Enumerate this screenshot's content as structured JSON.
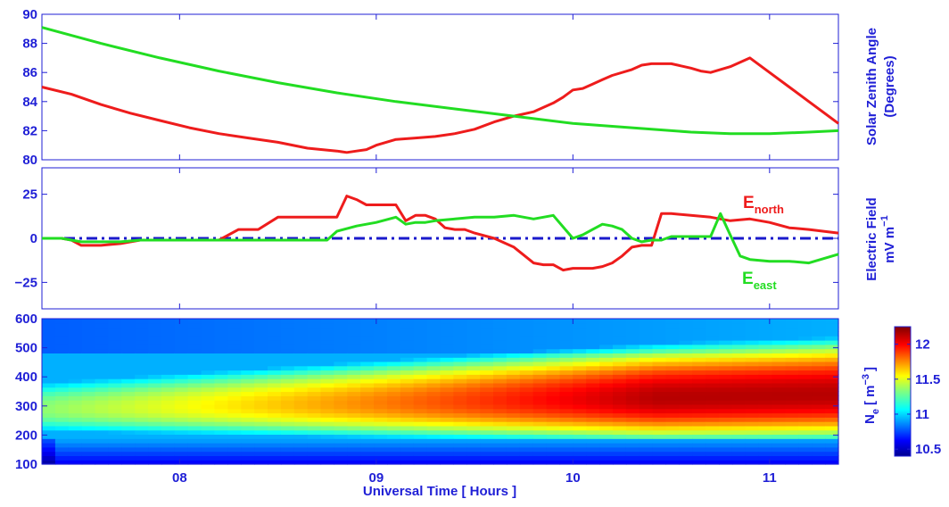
{
  "chart_data": [
    {
      "type": "line",
      "ylabel_line1": "Solar Zenith Angle",
      "ylabel_line2": "(Degrees)",
      "xlim": [
        7.3,
        11.35
      ],
      "ylim": [
        80,
        90
      ],
      "yticks": [
        80,
        82,
        84,
        86,
        88,
        90
      ],
      "series": [
        {
          "color": "#ee1c1c",
          "x": [
            7.3,
            7.45,
            7.6,
            7.75,
            7.9,
            8.05,
            8.2,
            8.35,
            8.5,
            8.65,
            8.8,
            8.85,
            8.9,
            8.95,
            9.0,
            9.1,
            9.2,
            9.3,
            9.4,
            9.5,
            9.6,
            9.7,
            9.8,
            9.9,
            9.95,
            10.0,
            10.05,
            10.1,
            10.15,
            10.2,
            10.3,
            10.35,
            10.4,
            10.5,
            10.6,
            10.65,
            10.7,
            10.8,
            10.9,
            11.0,
            11.1,
            11.2,
            11.35
          ],
          "y": [
            85.0,
            84.5,
            83.8,
            83.2,
            82.7,
            82.2,
            81.8,
            81.5,
            81.2,
            80.8,
            80.6,
            80.5,
            80.6,
            80.7,
            81.0,
            81.4,
            81.5,
            81.6,
            81.8,
            82.1,
            82.6,
            83.0,
            83.3,
            83.9,
            84.3,
            84.8,
            84.9,
            85.2,
            85.5,
            85.8,
            86.2,
            86.5,
            86.6,
            86.6,
            86.3,
            86.1,
            86.0,
            86.4,
            87.0,
            86.0,
            85.0,
            84.0,
            82.5
          ]
        },
        {
          "color": "#22dd22",
          "x": [
            7.3,
            7.6,
            7.9,
            8.2,
            8.5,
            8.8,
            9.1,
            9.4,
            9.7,
            10.0,
            10.3,
            10.6,
            10.8,
            11.0,
            11.2,
            11.35
          ],
          "y": [
            89.1,
            88.0,
            87.0,
            86.1,
            85.3,
            84.6,
            84.0,
            83.5,
            83.0,
            82.5,
            82.2,
            81.9,
            81.8,
            81.8,
            81.9,
            82.0
          ]
        }
      ]
    },
    {
      "type": "line",
      "ylabel_line1": "Electric Field",
      "ylabel_line2": "mV m",
      "ylabel_line2_sup": "−1",
      "xlim": [
        7.3,
        11.35
      ],
      "ylim": [
        -40,
        40
      ],
      "yticks": [
        -25,
        0,
        25
      ],
      "ytick_labels": [
        "−25",
        "0",
        "25"
      ],
      "zero_line_color": "#1a1acc",
      "series": [
        {
          "name": "E",
          "name_sub": "north",
          "color": "#ee1c1c",
          "x": [
            7.3,
            7.35,
            7.4,
            7.45,
            7.5,
            7.6,
            7.7,
            7.8,
            7.9,
            8.0,
            8.1,
            8.2,
            8.3,
            8.35,
            8.4,
            8.5,
            8.6,
            8.7,
            8.8,
            8.85,
            8.9,
            8.95,
            9.0,
            9.05,
            9.1,
            9.15,
            9.2,
            9.25,
            9.3,
            9.35,
            9.4,
            9.45,
            9.5,
            9.6,
            9.7,
            9.8,
            9.85,
            9.9,
            9.95,
            10.0,
            10.05,
            10.1,
            10.15,
            10.2,
            10.25,
            10.3,
            10.35,
            10.4,
            10.45,
            10.5,
            10.6,
            10.7,
            10.8,
            10.9,
            11.0,
            11.1,
            11.2,
            11.35
          ],
          "y": [
            0,
            0,
            0,
            -1,
            -4,
            -4,
            -3,
            -1,
            -1,
            -1,
            -1,
            -1,
            5,
            5,
            5,
            12,
            12,
            12,
            12,
            24,
            22,
            19,
            19,
            19,
            19,
            10,
            13,
            13,
            11,
            6,
            5,
            5,
            3,
            0,
            -5,
            -14,
            -15,
            -15,
            -18,
            -17,
            -17,
            -17,
            -16,
            -14,
            -10,
            -5,
            -4,
            -4,
            14,
            14,
            13,
            12,
            10,
            11,
            9,
            6,
            5,
            3
          ]
        },
        {
          "name": "E",
          "name_sub": "east",
          "color": "#22dd22",
          "x": [
            7.3,
            7.4,
            7.45,
            7.5,
            7.6,
            7.7,
            7.8,
            7.9,
            8.0,
            8.1,
            8.2,
            8.3,
            8.4,
            8.5,
            8.6,
            8.7,
            8.75,
            8.8,
            8.9,
            9.0,
            9.1,
            9.15,
            9.2,
            9.25,
            9.3,
            9.4,
            9.5,
            9.6,
            9.7,
            9.8,
            9.85,
            9.9,
            10.0,
            10.05,
            10.1,
            10.15,
            10.2,
            10.25,
            10.3,
            10.35,
            10.4,
            10.45,
            10.5,
            10.6,
            10.7,
            10.75,
            10.8,
            10.85,
            10.9,
            11.0,
            11.1,
            11.2,
            11.35
          ],
          "y": [
            0,
            0,
            -1,
            -2,
            -2,
            -2,
            -1,
            -1,
            -1,
            -1,
            -1,
            -1,
            -1,
            -1,
            -1,
            -1,
            -1,
            4,
            7,
            9,
            12,
            8,
            9,
            9,
            10,
            11,
            12,
            12,
            13,
            11,
            12,
            13,
            0,
            2,
            5,
            8,
            7,
            5,
            0,
            -2,
            -1,
            -1,
            1,
            1,
            1,
            14,
            2,
            -10,
            -12,
            -13,
            -13,
            -14,
            -9
          ]
        }
      ]
    },
    {
      "type": "heatmap",
      "colorbar_label": "N",
      "colorbar_label_sub": "e",
      "colorbar_label_unit": "[ m",
      "colorbar_label_sup": "−3",
      "colorbar_label_end": "]",
      "xlabel": "Universal Time [ Hours ]",
      "xlim": [
        7.3,
        11.35
      ],
      "ylim": [
        100,
        600
      ],
      "yticks": [
        100,
        200,
        300,
        400,
        500,
        600
      ],
      "xticks": [
        8,
        9,
        10,
        11
      ],
      "xtick_labels": [
        "08",
        "09",
        "10",
        "11"
      ],
      "color_range": [
        10.4,
        12.25
      ],
      "colorbar_ticks": [
        10.5,
        11,
        11.5,
        12
      ],
      "colorbar_tick_labels": [
        "10.5",
        "11",
        "11.5",
        "12"
      ],
      "colormap": "jet",
      "description_of_field": "log10 electron density vs altitude (km) and time; low altitude band (100-200) ~10.5-11, peak layer rising from ~300 to ~350 km with values up to ~12.1 after 10 UT"
    }
  ]
}
